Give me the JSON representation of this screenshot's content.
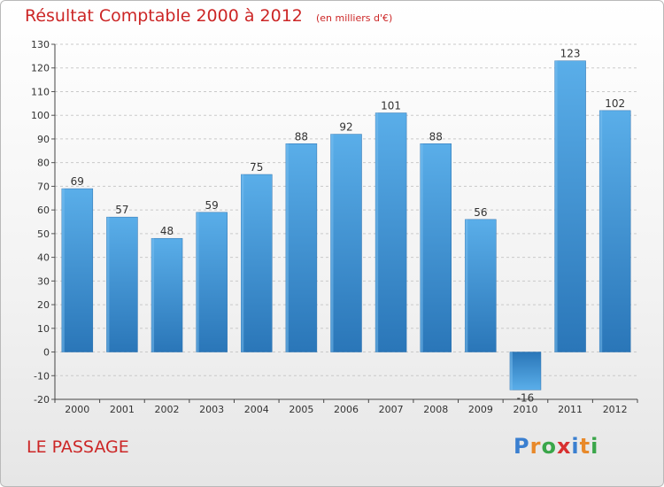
{
  "chart_data": {
    "type": "bar",
    "title": "Résultat Comptable 2000 à 2012",
    "subtitle": "(en milliers d'€)",
    "categories": [
      "2000",
      "2001",
      "2002",
      "2003",
      "2004",
      "2005",
      "2006",
      "2007",
      "2008",
      "2009",
      "2010",
      "2011",
      "2012"
    ],
    "values": [
      69,
      57,
      48,
      59,
      75,
      88,
      92,
      101,
      88,
      56,
      -16,
      123,
      102
    ],
    "ylim": [
      -20,
      130
    ],
    "yticks": [
      -20,
      -10,
      0,
      10,
      20,
      30,
      40,
      50,
      60,
      70,
      80,
      90,
      100,
      110,
      120,
      130
    ],
    "xlabel": "",
    "ylabel": "",
    "grid": true,
    "bar_color": "#4b9fdf"
  },
  "location": "LE PASSAGE",
  "logo": {
    "letters": [
      "P",
      "r",
      "o",
      "x",
      "i",
      "t",
      "i"
    ],
    "colors": [
      "#3a7fd0",
      "#e8892a",
      "#3aa64a",
      "#d83030",
      "#3a7fd0",
      "#e8892a",
      "#3aa64a"
    ]
  }
}
